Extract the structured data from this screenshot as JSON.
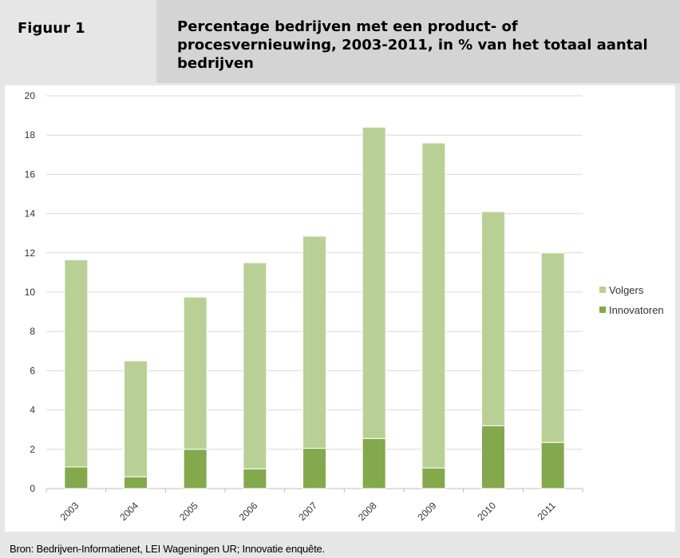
{
  "figure": {
    "label": "Figuur 1",
    "title": "Percentage bedrijven met een product- of procesvernieuwing, 2003-2011, in % van het totaal aantal bedrijven",
    "source": "Bron: Bedrijven-Informatienet, LEI Wageningen UR; Innovatie enquête."
  },
  "colors": {
    "volgers": "#b8d096",
    "innovatoren": "#84a84c",
    "gridline": "#d9d9d9"
  },
  "chart_data": {
    "type": "bar",
    "stacked": true,
    "categories": [
      "2003",
      "2004",
      "2005",
      "2006",
      "2007",
      "2008",
      "2009",
      "2010",
      "2011"
    ],
    "series": [
      {
        "name": "Innovatoren",
        "values": [
          1.1,
          0.6,
          2.0,
          1.0,
          2.05,
          2.55,
          1.05,
          3.2,
          2.35
        ]
      },
      {
        "name": "Volgers",
        "values": [
          10.55,
          5.9,
          7.75,
          10.5,
          10.8,
          15.85,
          16.55,
          10.9,
          9.65
        ]
      }
    ],
    "title": "",
    "xlabel": "",
    "ylabel": "",
    "ylim": [
      0,
      20
    ],
    "yticks": [
      "0",
      "2",
      "4",
      "6",
      "8",
      "10",
      "12",
      "14",
      "16",
      "18",
      "20"
    ],
    "grid": true,
    "legend_position": "right",
    "legend": [
      "Volgers",
      "Innovatoren"
    ]
  }
}
